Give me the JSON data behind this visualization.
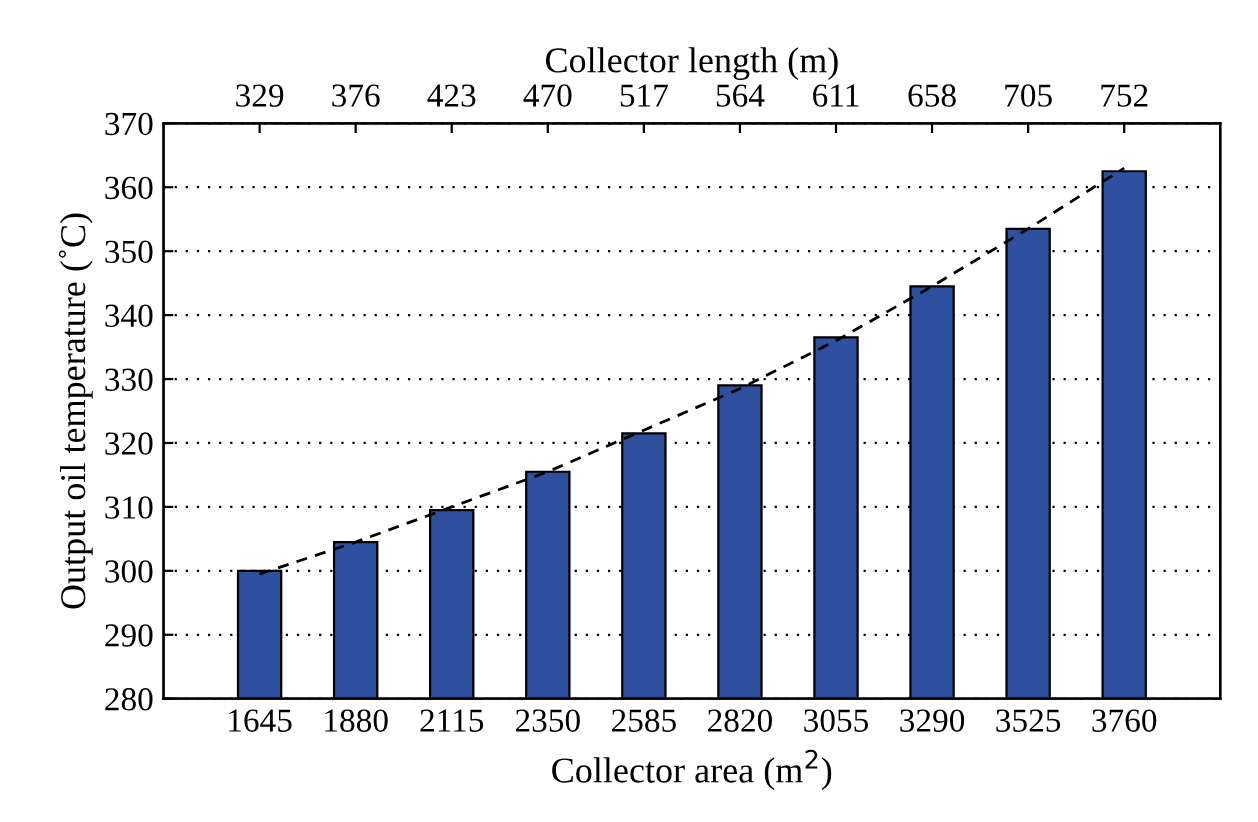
{
  "chart_data": {
    "type": "bar",
    "xlabel": "Collector area (m$^{2}$)",
    "ylabel": "Output oil temperature (˚C)",
    "x2label": "Collector length (m)",
    "x": [
      1645,
      1880,
      2115,
      2350,
      2585,
      2820,
      3055,
      3290,
      3525,
      3760
    ],
    "series": [
      {
        "color": "#2f4f9f",
        "values": [
          300,
          304.5,
          309.5,
          315.5,
          321.5,
          329,
          336.5,
          344.5,
          353.5,
          362.5
        ]
      },
      {
        "type": "line",
        "color": "#000000",
        "line_style": "dashed",
        "x": [
          1645,
          1880,
          2115,
          2350,
          2585,
          2820,
          3055,
          3290,
          3525,
          3760
        ],
        "values": [
          299.5,
          304.5,
          310,
          315.5,
          322,
          328.5,
          336,
          344.5,
          353.5,
          363
        ]
      }
    ],
    "xlim": [
      1410,
      3995
    ],
    "xticks": [
      1645,
      1880,
      2115,
      2350,
      2585,
      2820,
      3055,
      3290,
      3525,
      3760
    ],
    "x2lim": [
      282,
      799
    ],
    "x2ticks": [
      329,
      376,
      423,
      470,
      517,
      564,
      611,
      658,
      705,
      752
    ],
    "ylim": [
      280,
      370
    ],
    "yticks": [
      280,
      290,
      300,
      310,
      320,
      330,
      340,
      350,
      360,
      370
    ],
    "grid": "y"
  }
}
